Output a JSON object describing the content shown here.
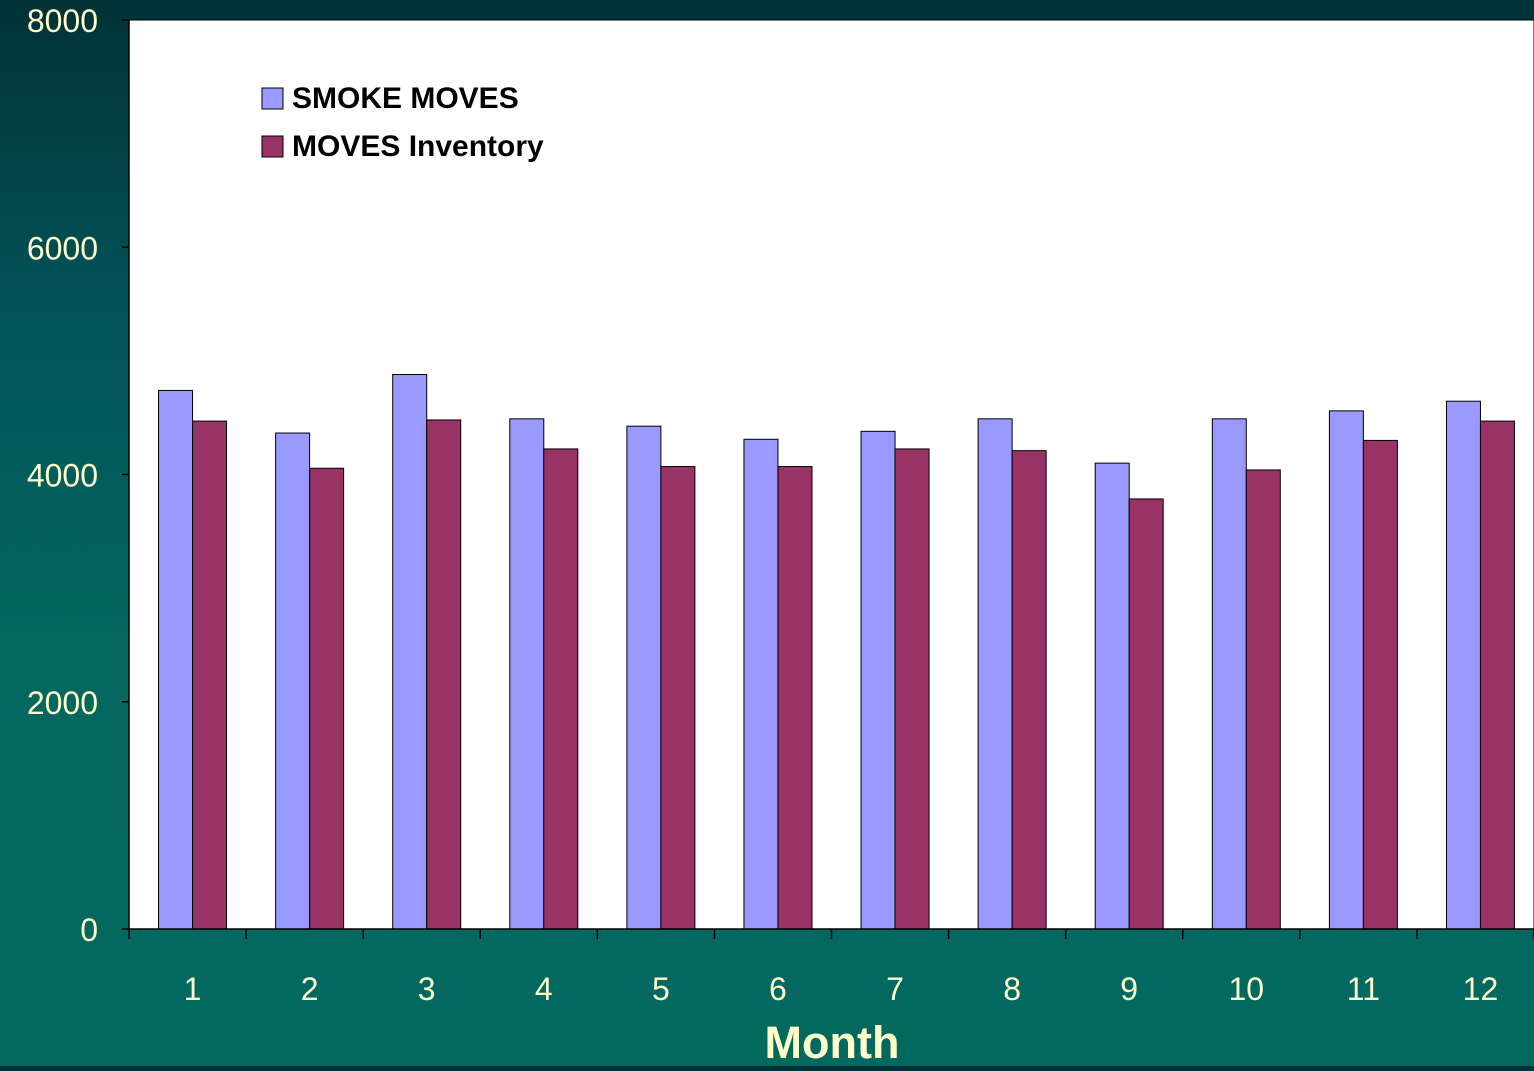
{
  "chart_data": {
    "type": "bar",
    "categories": [
      "1",
      "2",
      "3",
      "4",
      "5",
      "6",
      "7",
      "8",
      "9",
      "10",
      "11",
      "12"
    ],
    "series": [
      {
        "name": "SMOKE MOVES",
        "color": "#9999ff",
        "values": [
          4740,
          4365,
          4880,
          4490,
          4425,
          4310,
          4380,
          4490,
          4100,
          4490,
          4560,
          4645
        ]
      },
      {
        "name": "MOVES Inventory",
        "color": "#993366",
        "values": [
          4470,
          4055,
          4480,
          4225,
          4070,
          4070,
          4225,
          4210,
          3785,
          4040,
          4300,
          4470
        ]
      }
    ],
    "xlabel": "Month",
    "ylabel": "",
    "ylim": [
      0,
      8000
    ],
    "yticks": [
      "0",
      "2000",
      "4000",
      "6000",
      "8000"
    ],
    "grid": false,
    "legend_position": "top-left"
  },
  "colors": {
    "plot_background": "#ffffff",
    "axis_text": "#ffffcc",
    "axis_line": "#000000"
  }
}
